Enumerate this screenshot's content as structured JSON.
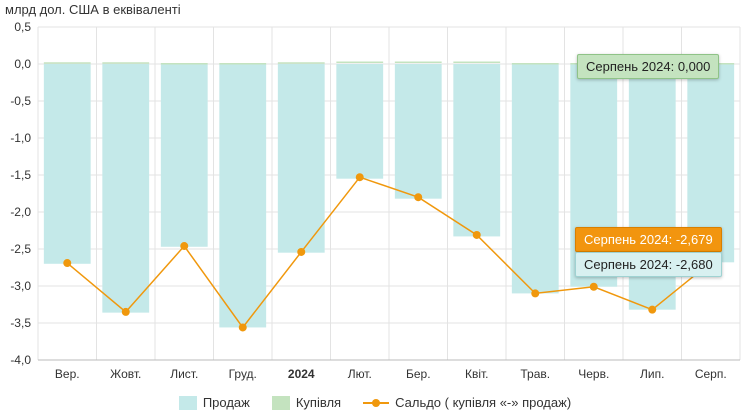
{
  "unit_label": "млрд дол. США в еквіваленті",
  "colors": {
    "sales": "#c4e9e9",
    "purchase": "#c4e3bf",
    "balance": "#f0980d",
    "grid": "#e3e3e3"
  },
  "chart_data": {
    "type": "bar",
    "ylabel": "млрд дол. США в еквіваленті",
    "ylim": [
      -4.0,
      0.5
    ],
    "yticks": [
      "0,5",
      "0,0",
      "-0,5",
      "-1,0",
      "-1,5",
      "-2,0",
      "-2,5",
      "-3,0",
      "-3,5",
      "-4,0"
    ],
    "ytick_values": [
      0.5,
      0.0,
      -0.5,
      -1.0,
      -1.5,
      -2.0,
      -2.5,
      -3.0,
      -3.5,
      -4.0
    ],
    "categories": [
      "Вер.",
      "Жовт.",
      "Лист.",
      "Груд.",
      "2024",
      "Лют.",
      "Бер.",
      "Квіт.",
      "Трав.",
      "Черв.",
      "Лип.",
      "Серп."
    ],
    "bold_categories": [
      "2024"
    ],
    "series": [
      {
        "name": "Продаж",
        "type": "bar",
        "values": [
          -2.7,
          -3.36,
          -2.47,
          -3.56,
          -2.55,
          -1.55,
          -1.82,
          -2.33,
          -3.1,
          -3.01,
          -3.32,
          -2.68
        ]
      },
      {
        "name": "Купівля",
        "type": "bar",
        "values": [
          0.01,
          0.01,
          0.0,
          0.0,
          0.01,
          0.02,
          0.02,
          0.02,
          0.0,
          0.0,
          0.0,
          0.0
        ]
      },
      {
        "name": "Сальдо ( купівля «-» продаж)",
        "type": "line",
        "values": [
          -2.69,
          -3.35,
          -2.46,
          -3.56,
          -2.54,
          -1.53,
          -1.8,
          -2.31,
          -3.1,
          -3.01,
          -3.32,
          -2.68
        ]
      }
    ],
    "grid": true,
    "legend_position": "bottom"
  },
  "tooltips": {
    "purchase": "Серпень 2024: 0,000",
    "balance": "Серпень 2024: -2,679",
    "sales": "Серпень 2024: -2,680"
  }
}
